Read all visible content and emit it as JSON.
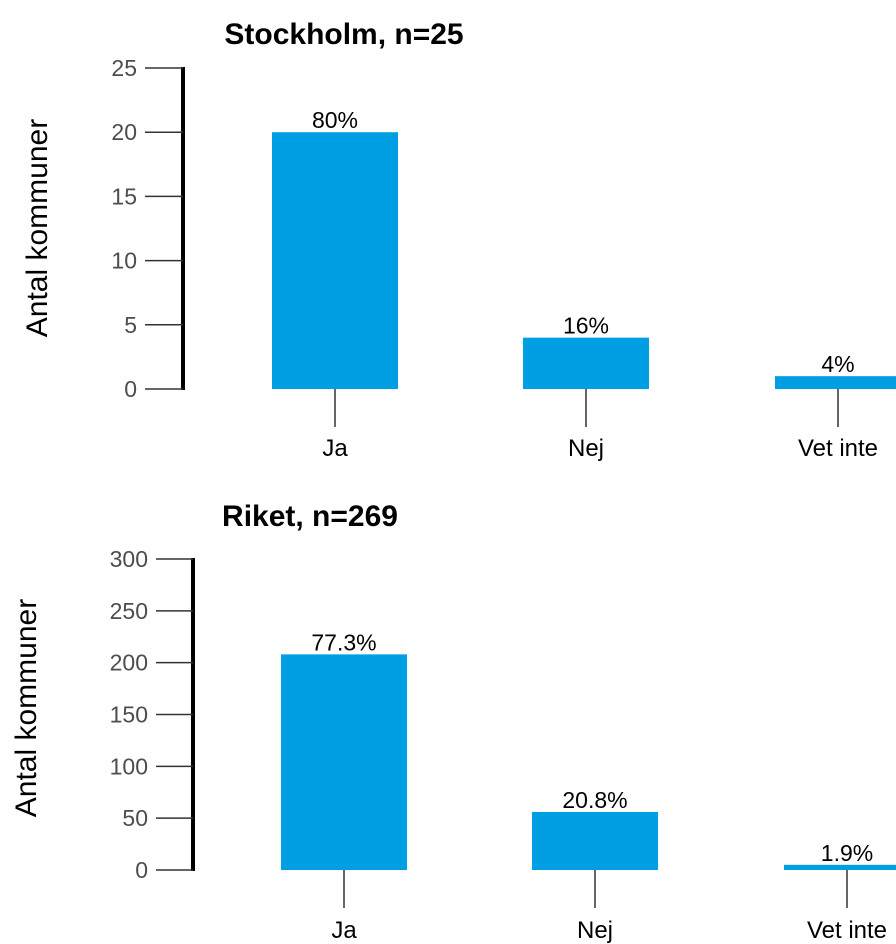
{
  "chart_data": [
    {
      "type": "bar",
      "title": "Stockholm, n=25",
      "ylabel": "Antal kommuner",
      "xlabel": "",
      "categories": [
        "Ja",
        "Nej",
        "Vet inte"
      ],
      "values": [
        20,
        4,
        1
      ],
      "data_labels": [
        "80%",
        "16%",
        "4%"
      ],
      "ylim": [
        0,
        25
      ],
      "yticks": [
        0,
        5,
        10,
        15,
        20,
        25
      ],
      "ytick_labels": [
        "0",
        "5",
        "10",
        "15",
        "20",
        "25"
      ],
      "grid": false,
      "bar_color": "#009fe3"
    },
    {
      "type": "bar",
      "title": "Riket, n=269",
      "ylabel": "Antal kommuner",
      "xlabel": "",
      "categories": [
        "Ja",
        "Nej",
        "Vet inte"
      ],
      "values": [
        208,
        56,
        5
      ],
      "data_labels": [
        "77.3%",
        "20.8%",
        "1.9%"
      ],
      "ylim": [
        0,
        300
      ],
      "yticks": [
        0,
        50,
        100,
        150,
        200,
        250,
        300
      ],
      "ytick_labels": [
        "0",
        "50",
        "100",
        "150",
        "200",
        "250",
        "300"
      ],
      "grid": false,
      "bar_color": "#009fe3"
    }
  ]
}
